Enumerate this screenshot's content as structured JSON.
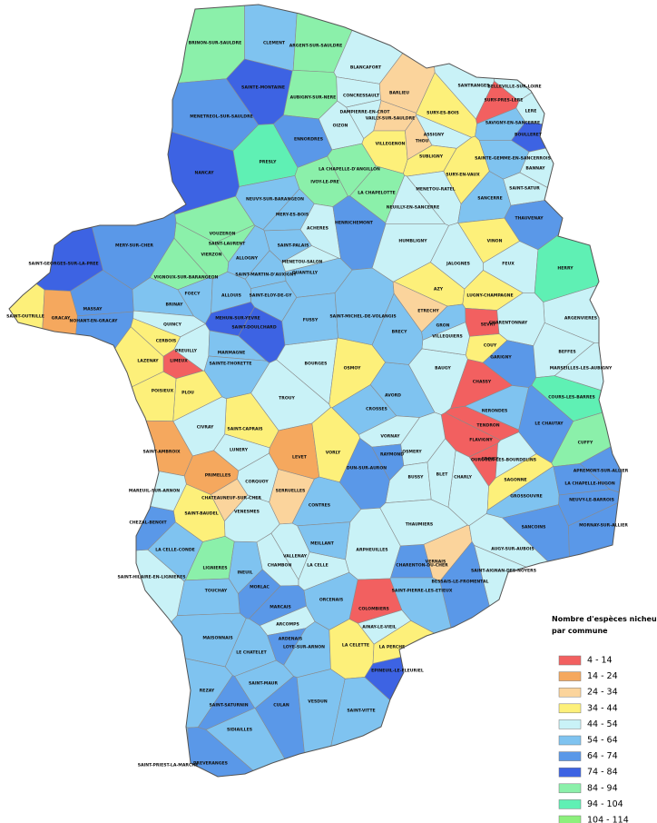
{
  "legend": {
    "title_lines": [
      "Nombre d'espèces nicheuses",
      "par commune"
    ],
    "items": [
      {
        "label": "4 - 14",
        "color": "#f26060"
      },
      {
        "label": "14 - 24",
        "color": "#f5a85e"
      },
      {
        "label": "24 - 34",
        "color": "#fbd49c"
      },
      {
        "label": "34 - 44",
        "color": "#fdf07a"
      },
      {
        "label": "44 - 54",
        "color": "#c9f2f7"
      },
      {
        "label": "54 - 64",
        "color": "#7fc3f0"
      },
      {
        "label": "64 - 74",
        "color": "#5a98e8"
      },
      {
        "label": "74 - 84",
        "color": "#3d63e3"
      },
      {
        "label": "84 - 94",
        "color": "#8bf0aa"
      },
      {
        "label": "94 - 104",
        "color": "#5ff0b4"
      },
      {
        "label": "104 - 114",
        "color": "#8cf07c"
      }
    ]
  },
  "communes": [
    {
      "name": "BRINON-SUR-SAULDRE",
      "color": "#8bf0aa"
    },
    {
      "name": "CLEMENT",
      "color": "#7fc3f0"
    },
    {
      "name": "ARGENT-SUR-SAULDRE",
      "color": "#8bf0aa"
    },
    {
      "name": "BLANCAFORT",
      "color": "#c9f2f7"
    },
    {
      "name": "SAINTE-MONTAINE",
      "color": "#3d63e3"
    },
    {
      "name": "AUBIGNY-SUR-NERE",
      "color": "#8bf0aa"
    },
    {
      "name": "CONCRESSAULT",
      "color": "#c9f2f7"
    },
    {
      "name": "BARLIEU",
      "color": "#fbd49c"
    },
    {
      "name": "MENETREOL-SUR-SAULDRE",
      "color": "#5a98e8"
    },
    {
      "name": "VAILLY-SUR-SAULDRE",
      "color": "#fbd49c"
    },
    {
      "name": "DAMPIERRE-EN-CROT",
      "color": "#c9f2f7"
    },
    {
      "name": "OIZON",
      "color": "#c9f2f7"
    },
    {
      "name": "ENNORDRES",
      "color": "#5a98e8"
    },
    {
      "name": "VILLEGENON",
      "color": "#fdf07a"
    },
    {
      "name": "THOU",
      "color": "#fbd49c"
    },
    {
      "name": "SURY-ES-BOIS",
      "color": "#fdf07a"
    },
    {
      "name": "ASSIGNY",
      "color": "#c9f2f7"
    },
    {
      "name": "SANTRANGES",
      "color": "#c9f2f7"
    },
    {
      "name": "BELLEVILLE-SUR-LOIRE",
      "color": "#c9f2f7"
    },
    {
      "name": "SURY-PRES-LERE",
      "color": "#f26060"
    },
    {
      "name": "LERE",
      "color": "#c9f2f7"
    },
    {
      "name": "SAVIGNY-EN-SANCERRE",
      "color": "#7fc3f0"
    },
    {
      "name": "BOULLERET",
      "color": "#3d63e3"
    },
    {
      "name": "SAINTE-GEMME-EN-SANCERROIS",
      "color": "#7fc3f0"
    },
    {
      "name": "NANCAY",
      "color": "#3d63e3"
    },
    {
      "name": "PRESLY",
      "color": "#5ff0b4"
    },
    {
      "name": "LA CHAPELLE-D'ANGILLON",
      "color": "#8bf0aa"
    },
    {
      "name": "SUBLIGNY",
      "color": "#fdf07a"
    },
    {
      "name": "IVOY-LE-PRE",
      "color": "#8bf0aa"
    },
    {
      "name": "NEUVY-SUR-BARANGEON",
      "color": "#7fc3f0"
    },
    {
      "name": "LA CHAPELOTTE",
      "color": "#8bf0aa"
    },
    {
      "name": "MENETOU-RATEL",
      "color": "#c9f2f7"
    },
    {
      "name": "SURY-EN-VAUX",
      "color": "#fdf07a"
    },
    {
      "name": "BANNAY",
      "color": "#c9f2f7"
    },
    {
      "name": "SAINT-SATUR",
      "color": "#c9f2f7"
    },
    {
      "name": "MERY-ES-BOIS",
      "color": "#7fc3f0"
    },
    {
      "name": "SANCERRE",
      "color": "#7fc3f0"
    },
    {
      "name": "MENETOU-SALON",
      "color": "#c9f2f7"
    },
    {
      "name": "ACHERES",
      "color": "#c9f2f7"
    },
    {
      "name": "HENRICHEMONT",
      "color": "#5a98e8"
    },
    {
      "name": "NEUILLY-EN-SANCERRE",
      "color": "#c9f2f7"
    },
    {
      "name": "THAUVENAY",
      "color": "#5a98e8"
    },
    {
      "name": "VOUZERON",
      "color": "#8bf0aa"
    },
    {
      "name": "VIERZON",
      "color": "#8bf0aa"
    },
    {
      "name": "SAINT-LAURENT",
      "color": "#8bf0aa"
    },
    {
      "name": "MERY-SUR-CHER",
      "color": "#5a98e8"
    },
    {
      "name": "SAINT-GEORGES-SUR-LA-PREE",
      "color": "#3d63e3"
    },
    {
      "name": "VIGNOUX-SUR-BARANGEON",
      "color": "#8bf0aa"
    },
    {
      "name": "ALLOGNY",
      "color": "#7fc3f0"
    },
    {
      "name": "SAINT-PALAIS",
      "color": "#7fc3f0"
    },
    {
      "name": "HUMBLIGNY",
      "color": "#c9f2f7"
    },
    {
      "name": "VINON",
      "color": "#fdf07a"
    },
    {
      "name": "FEUX",
      "color": "#c9f2f7"
    },
    {
      "name": "HERRY",
      "color": "#5ff0b4"
    },
    {
      "name": "QUANTILLY",
      "color": "#7fc3f0"
    },
    {
      "name": "SAINT-MARTIN-D'AUXIGNY",
      "color": "#7fc3f0"
    },
    {
      "name": "FOECY",
      "color": "#7fc3f0"
    },
    {
      "name": "ALLOUIS",
      "color": "#7fc3f0"
    },
    {
      "name": "SAINT-ELOY-DE-GY",
      "color": "#7fc3f0"
    },
    {
      "name": "MASSAY",
      "color": "#5a98e8"
    },
    {
      "name": "MEHUN-SUR-YEVRE",
      "color": "#3d63e3"
    },
    {
      "name": "AZY",
      "color": "#fdf07a"
    },
    {
      "name": "JALOGNES",
      "color": "#c9f2f7"
    },
    {
      "name": "SAINT-OUTRILLE",
      "color": "#fdf07a"
    },
    {
      "name": "GRACAY",
      "color": "#f5a85e"
    },
    {
      "name": "NOHANT-EN-GRACAY",
      "color": "#5a98e8"
    },
    {
      "name": "BRINAY",
      "color": "#7fc3f0"
    },
    {
      "name": "BOURGES",
      "color": "#c9f2f7"
    },
    {
      "name": "SAINT-DOULCHARD",
      "color": "#3d63e3"
    },
    {
      "name": "FUSSY",
      "color": "#7fc3f0"
    },
    {
      "name": "SAINT-MICHEL-DE-VOLANGIS",
      "color": "#7fc3f0"
    },
    {
      "name": "ETRECHY",
      "color": "#fbd49c"
    },
    {
      "name": "LUGNY-CHAMPAGNE",
      "color": "#fdf07a"
    },
    {
      "name": "SEVRY",
      "color": "#f26060"
    },
    {
      "name": "ARGENVIERES",
      "color": "#c9f2f7"
    },
    {
      "name": "CHARENTONNAY",
      "color": "#c9f2f7"
    },
    {
      "name": "QUINCY",
      "color": "#c9f2f7"
    },
    {
      "name": "CERBOIS",
      "color": "#fdf07a"
    },
    {
      "name": "LIMEUX",
      "color": "#f26060"
    },
    {
      "name": "LAZENAY",
      "color": "#fdf07a"
    },
    {
      "name": "PREUILLY",
      "color": "#c9f2f7"
    },
    {
      "name": "MARMAGNE",
      "color": "#7fc3f0"
    },
    {
      "name": "SAINTE-THORETTE",
      "color": "#7fc3f0"
    },
    {
      "name": "PLOU",
      "color": "#fdf07a"
    },
    {
      "name": "POISIEUX",
      "color": "#fdf07a"
    },
    {
      "name": "TROUY",
      "color": "#c9f2f7"
    },
    {
      "name": "OSMOY",
      "color": "#fdf07a"
    },
    {
      "name": "BAUGY",
      "color": "#c9f2f7"
    },
    {
      "name": "COUY",
      "color": "#fdf07a"
    },
    {
      "name": "GARIGNY",
      "color": "#5a98e8"
    },
    {
      "name": "BEFFES",
      "color": "#c9f2f7"
    },
    {
      "name": "CHASSY",
      "color": "#f26060"
    },
    {
      "name": "NERONDES",
      "color": "#7fc3f0"
    },
    {
      "name": "COURS-LES-BARRES",
      "color": "#5ff0b4"
    },
    {
      "name": "CUFFY",
      "color": "#8bf0aa"
    },
    {
      "name": "LE CHAUTAY",
      "color": "#5a98e8"
    },
    {
      "name": "TENDRON",
      "color": "#f26060"
    },
    {
      "name": "FLAVIGNY",
      "color": "#f26060"
    },
    {
      "name": "CROISY",
      "color": "#f26060"
    },
    {
      "name": "SAINT-AMBROIX",
      "color": "#f5a85e"
    },
    {
      "name": "LUNERY",
      "color": "#c9f2f7"
    },
    {
      "name": "LEVET",
      "color": "#f5a85e"
    },
    {
      "name": "SAINT-CAPRAIS",
      "color": "#fdf07a"
    },
    {
      "name": "CIVRAY",
      "color": "#c9f2f7"
    },
    {
      "name": "VORLY",
      "color": "#fdf07a"
    },
    {
      "name": "AVORD",
      "color": "#7fc3f0"
    },
    {
      "name": "CROSSES",
      "color": "#7fc3f0"
    },
    {
      "name": "VORNAY",
      "color": "#c9f2f7"
    },
    {
      "name": "RAYMOND",
      "color": "#5a98e8"
    },
    {
      "name": "OSMERY",
      "color": "#c9f2f7"
    },
    {
      "name": "BUSSY",
      "color": "#c9f2f7"
    },
    {
      "name": "CHARLY",
      "color": "#c9f2f7"
    },
    {
      "name": "GROSSOUVRE",
      "color": "#7fc3f0"
    },
    {
      "name": "SANCOINS",
      "color": "#5a98e8"
    },
    {
      "name": "NEUVY-LE-BARROIS",
      "color": "#5a98e8"
    },
    {
      "name": "PRIMELLES",
      "color": "#f5a85e"
    },
    {
      "name": "CHATEAUNEUF-SUR-CHER",
      "color": "#fbd49c"
    },
    {
      "name": "CORQUOY",
      "color": "#c9f2f7"
    },
    {
      "name": "SAINT-BAUDEL",
      "color": "#fdf07a"
    },
    {
      "name": "VENESMES",
      "color": "#c9f2f7"
    },
    {
      "name": "CONTRES",
      "color": "#7fc3f0"
    },
    {
      "name": "DUN-SUR-AURON",
      "color": "#5a98e8"
    },
    {
      "name": "SERRUELLES",
      "color": "#fbd49c"
    },
    {
      "name": "CHAMBON",
      "color": "#c9f2f7"
    },
    {
      "name": "LIGNIERES",
      "color": "#8bf0aa"
    },
    {
      "name": "INEUIL",
      "color": "#7fc3f0"
    },
    {
      "name": "VALLENAY",
      "color": "#c9f2f7"
    },
    {
      "name": "LA CELLE",
      "color": "#c9f2f7"
    },
    {
      "name": "MEILLANT",
      "color": "#7fc3f0"
    },
    {
      "name": "ARPHEUILLES",
      "color": "#c9f2f7"
    },
    {
      "name": "VERNAIS",
      "color": "#fbd49c"
    },
    {
      "name": "SAGONNE",
      "color": "#fdf07a"
    },
    {
      "name": "AUGY-SUR-AUBOIS",
      "color": "#c9f2f7"
    },
    {
      "name": "SAINT-AIGNAN-DES-NOYERS",
      "color": "#c9f2f7"
    },
    {
      "name": "BESSAIS-LE-FROMENTAL",
      "color": "#5a98e8"
    },
    {
      "name": "CHARENTON-DU-CHER",
      "color": "#5a98e8"
    },
    {
      "name": "SAINT-PIERRE-LES-ETIEUX",
      "color": "#7fc3f0"
    },
    {
      "name": "COLOMBIERS",
      "color": "#f26060"
    },
    {
      "name": "AINAY-LE-VIEIL",
      "color": "#c9f2f7"
    },
    {
      "name": "ORCENAIS",
      "color": "#7fc3f0"
    },
    {
      "name": "MARCAIS",
      "color": "#5a98e8"
    },
    {
      "name": "ARCOMPS",
      "color": "#c9f2f7"
    },
    {
      "name": "LE CHATELET",
      "color": "#7fc3f0"
    },
    {
      "name": "MORLAC",
      "color": "#5a98e8"
    },
    {
      "name": "TOUCHAY",
      "color": "#7fc3f0"
    },
    {
      "name": "MAISONNAIS",
      "color": "#7fc3f0"
    },
    {
      "name": "ARDENAIS",
      "color": "#5a98e8"
    },
    {
      "name": "LOYE-SUR-ARNON",
      "color": "#7fc3f0"
    },
    {
      "name": "LA CELETTE",
      "color": "#fdf07a"
    },
    {
      "name": "LA PERCHE",
      "color": "#fdf07a"
    },
    {
      "name": "SAINT-HILAIRE-EN-LIGNIERES",
      "color": "#c9f2f7"
    },
    {
      "name": "LA CELLE-CONDE",
      "color": "#7fc3f0"
    },
    {
      "name": "CHEZAL-BENOIT",
      "color": "#5a98e8"
    },
    {
      "name": "MAREUIL-SUR-ARNON",
      "color": "#c9f2f7"
    },
    {
      "name": "REZAY",
      "color": "#7fc3f0"
    },
    {
      "name": "SAINT-SATURNIN",
      "color": "#5a98e8"
    },
    {
      "name": "SIDIAILLES",
      "color": "#7fc3f0"
    },
    {
      "name": "CULAN",
      "color": "#5a98e8"
    },
    {
      "name": "VESDUN",
      "color": "#7fc3f0"
    },
    {
      "name": "SAINT-PRIEST-LA-MARCHE",
      "color": "#7fc3f0"
    },
    {
      "name": "PREVERANGES",
      "color": "#5a98e8"
    },
    {
      "name": "SAINT-VITTE",
      "color": "#7fc3f0"
    },
    {
      "name": "EPINEUIL-LE-FLEURIEL",
      "color": "#3d63e3"
    },
    {
      "name": "SAINT-MAUR",
      "color": "#7fc3f0"
    },
    {
      "name": "MORNAY-SUR-ALLIER",
      "color": "#5a98e8"
    },
    {
      "name": "APREMONT-SUR-ALLIER",
      "color": "#5a98e8"
    },
    {
      "name": "LA CHAPELLE-HUGON",
      "color": "#5a98e8"
    },
    {
      "name": "THAUMIERS",
      "color": "#c9f2f7"
    },
    {
      "name": "BLET",
      "color": "#c9f2f7"
    },
    {
      "name": "OUROUER-LES-BOURDELINS",
      "color": "#c9f2f7"
    },
    {
      "name": "MARSEILLES-LES-AUBIGNY",
      "color": "#c9f2f7"
    },
    {
      "name": "VILLEQUIERS",
      "color": "#c9f2f7"
    },
    {
      "name": "GRON",
      "color": "#7fc3f0"
    },
    {
      "name": "BRECY",
      "color": "#7fc3f0"
    }
  ]
}
